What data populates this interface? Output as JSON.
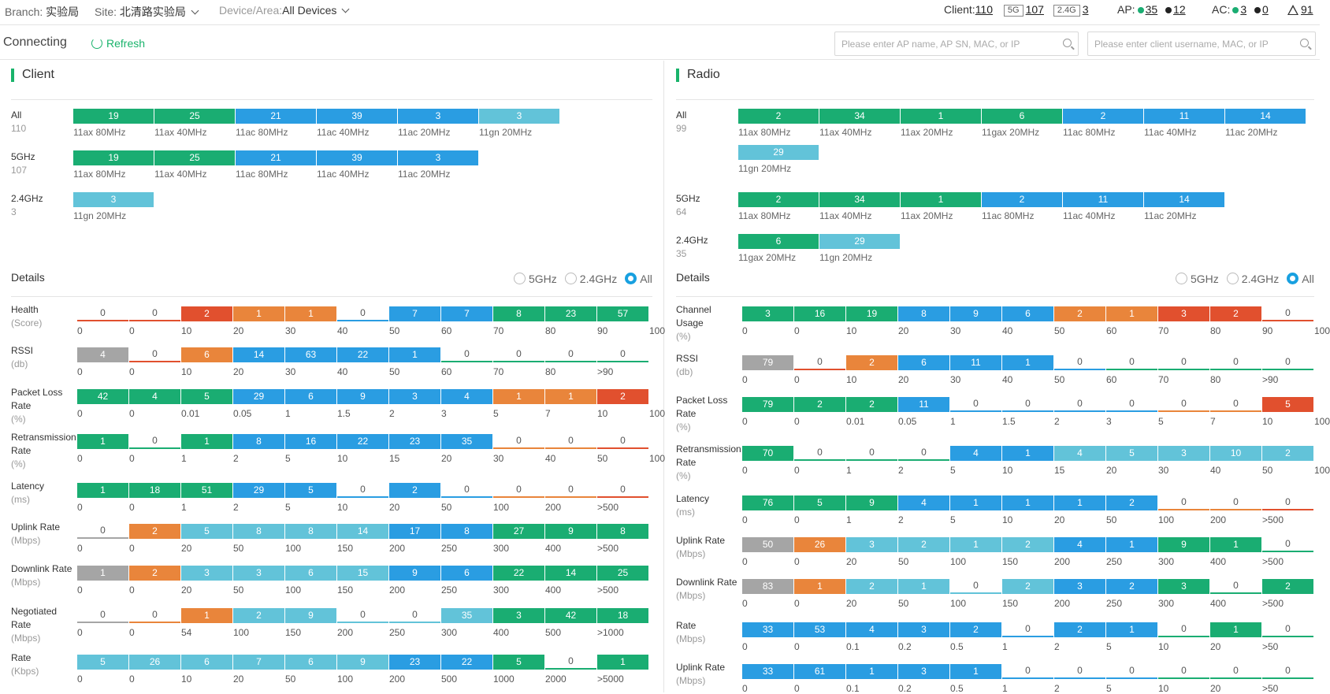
{
  "top": {
    "branch_label": "Branch:",
    "branch_value": "实验局",
    "site_label": "Site:",
    "site_value": "北清路实验局",
    "device_label": "Device/Area:",
    "device_value": "All Devices",
    "client_label": "Client:",
    "client_total": "110",
    "client_5g_tag": "5G",
    "client_5g": "107",
    "client_24g_tag": "2.4G",
    "client_24g": "3",
    "ap_label": "AP:",
    "ap_online": "35",
    "ap_offline": "12",
    "ac_label": "AC:",
    "ac_online": "3",
    "ac_offline": "0",
    "alarm_count": "91"
  },
  "toolbar": {
    "status": "Connecting",
    "refresh_label": "Refresh",
    "ap_search_placeholder": "Please enter AP name, AP SN, MAC, or IP",
    "client_search_placeholder": "Please enter client username, MAC, or IP"
  },
  "colors": {
    "green": "#1aad72",
    "blue": "#2a9de2",
    "light_blue": "#62c3d9",
    "orange": "#e9853b",
    "red": "#e1502e",
    "gray": "#a5a5a5",
    "accent": "#19b36b"
  },
  "client": {
    "title": "Client",
    "summary": [
      {
        "name": "All",
        "count": "110",
        "cells": [
          [
            "19",
            "11ax 80MHz",
            "green"
          ],
          [
            "25",
            "11ax 40MHz",
            "green"
          ],
          [
            "21",
            "11ac 80MHz",
            "blue"
          ],
          [
            "39",
            "11ac 40MHz",
            "blue"
          ],
          [
            "3",
            "11ac 20MHz",
            "blue"
          ],
          [
            "3",
            "11gn 20MHz",
            "light_blue"
          ]
        ]
      },
      {
        "name": "5GHz",
        "count": "107",
        "cells": [
          [
            "19",
            "11ax 80MHz",
            "green"
          ],
          [
            "25",
            "11ax 40MHz",
            "green"
          ],
          [
            "21",
            "11ac 80MHz",
            "blue"
          ],
          [
            "39",
            "11ac 40MHz",
            "blue"
          ],
          [
            "3",
            "11ac 20MHz",
            "blue"
          ]
        ]
      },
      {
        "name": "2.4GHz",
        "count": "3",
        "cells": [
          [
            "3",
            "11gn 20MHz",
            "light_blue"
          ]
        ]
      }
    ],
    "details_title": "Details",
    "filters": [
      "5GHz",
      "2.4GHz",
      "All"
    ],
    "metrics": [
      {
        "name": "Health",
        "unit": "(Score)",
        "vals": [
          "0",
          "0",
          "2",
          "1",
          "1",
          "0",
          "7",
          "7",
          "8",
          "23",
          "57"
        ],
        "cols": [
          "red",
          "red",
          "red",
          "orange",
          "orange",
          "blue",
          "blue",
          "blue",
          "green",
          "green",
          "green"
        ],
        "ticks": [
          "0",
          "0",
          "10",
          "20",
          "30",
          "40",
          "50",
          "60",
          "70",
          "80",
          "90",
          "100"
        ]
      },
      {
        "name": "RSSI",
        "unit": "(db)",
        "vals": [
          "4",
          "0",
          "6",
          "14",
          "63",
          "22",
          "1",
          "0",
          "0",
          "0",
          "0"
        ],
        "cols": [
          "gray",
          "red",
          "orange",
          "blue",
          "blue",
          "blue",
          "blue",
          "green",
          "green",
          "green",
          "green"
        ],
        "ticks": [
          "0",
          "0",
          "10",
          "20",
          "30",
          "40",
          "50",
          "60",
          "70",
          "80",
          ">90"
        ]
      },
      {
        "name": "Packet Loss",
        "name2": "Rate",
        "unit": "(%)",
        "vals": [
          "42",
          "4",
          "5",
          "29",
          "6",
          "9",
          "3",
          "4",
          "1",
          "1",
          "2"
        ],
        "cols": [
          "green",
          "green",
          "green",
          "blue",
          "blue",
          "blue",
          "blue",
          "blue",
          "orange",
          "orange",
          "red"
        ],
        "ticks": [
          "0",
          "0",
          "0.01",
          "0.05",
          "1",
          "1.5",
          "2",
          "3",
          "5",
          "7",
          "10",
          "100"
        ]
      },
      {
        "name": "Retransmission",
        "name2": "Rate",
        "unit": "(%)",
        "vals": [
          "1",
          "0",
          "1",
          "8",
          "16",
          "22",
          "23",
          "35",
          "0",
          "0",
          "0"
        ],
        "cols": [
          "green",
          "green",
          "green",
          "blue",
          "blue",
          "blue",
          "blue",
          "blue",
          "orange",
          "orange",
          "red"
        ],
        "ticks": [
          "0",
          "0",
          "1",
          "2",
          "5",
          "10",
          "15",
          "20",
          "30",
          "40",
          "50",
          "100"
        ]
      },
      {
        "name": "Latency",
        "unit": "(ms)",
        "vals": [
          "1",
          "18",
          "51",
          "29",
          "5",
          "0",
          "2",
          "0",
          "0",
          "0",
          "0"
        ],
        "cols": [
          "green",
          "green",
          "green",
          "blue",
          "blue",
          "blue",
          "blue",
          "blue",
          "orange",
          "orange",
          "red"
        ],
        "ticks": [
          "0",
          "0",
          "1",
          "2",
          "5",
          "10",
          "20",
          "50",
          "100",
          "200",
          ">500"
        ]
      },
      {
        "name": "Uplink Rate",
        "unit": "(Mbps)",
        "vals": [
          "0",
          "2",
          "5",
          "8",
          "8",
          "14",
          "17",
          "8",
          "27",
          "9",
          "8"
        ],
        "cols": [
          "gray",
          "orange",
          "light_blue",
          "light_blue",
          "light_blue",
          "light_blue",
          "blue",
          "blue",
          "green",
          "green",
          "green"
        ],
        "ticks": [
          "0",
          "0",
          "20",
          "50",
          "100",
          "150",
          "200",
          "250",
          "300",
          "400",
          ">500"
        ]
      },
      {
        "name": "Downlink Rate",
        "unit": "(Mbps)",
        "vals": [
          "1",
          "2",
          "3",
          "3",
          "6",
          "15",
          "9",
          "6",
          "22",
          "14",
          "25"
        ],
        "cols": [
          "gray",
          "orange",
          "light_blue",
          "light_blue",
          "light_blue",
          "light_blue",
          "blue",
          "blue",
          "green",
          "green",
          "green"
        ],
        "ticks": [
          "0",
          "0",
          "20",
          "50",
          "100",
          "150",
          "200",
          "250",
          "300",
          "400",
          ">500"
        ]
      },
      {
        "name": "Negotiated",
        "name2": "Rate",
        "unit": "(Mbps)",
        "vals": [
          "0",
          "0",
          "1",
          "2",
          "9",
          "0",
          "0",
          "35",
          "3",
          "42",
          "18"
        ],
        "cols": [
          "gray",
          "orange",
          "orange",
          "light_blue",
          "light_blue",
          "light_blue",
          "light_blue",
          "light_blue",
          "green",
          "green",
          "green"
        ],
        "ticks": [
          "0",
          "0",
          "54",
          "100",
          "150",
          "200",
          "250",
          "300",
          "400",
          "500",
          ">1000"
        ]
      },
      {
        "name": "Rate",
        "unit": "(Kbps)",
        "vals": [
          "5",
          "26",
          "6",
          "7",
          "6",
          "9",
          "23",
          "22",
          "5",
          "0",
          "1"
        ],
        "cols": [
          "light_blue",
          "light_blue",
          "light_blue",
          "light_blue",
          "light_blue",
          "light_blue",
          "blue",
          "blue",
          "green",
          "green",
          "green"
        ],
        "ticks": [
          "0",
          "0",
          "10",
          "20",
          "50",
          "100",
          "200",
          "500",
          "1000",
          "2000",
          ">5000"
        ]
      }
    ]
  },
  "radio": {
    "title": "Radio",
    "summary": [
      {
        "name": "All",
        "count": "99",
        "cells": [
          [
            "2",
            "11ax 80MHz",
            "green"
          ],
          [
            "34",
            "11ax 40MHz",
            "green"
          ],
          [
            "1",
            "11ax 20MHz",
            "green"
          ],
          [
            "6",
            "11gax 20MHz",
            "green"
          ],
          [
            "2",
            "11ac 80MHz",
            "blue"
          ],
          [
            "11",
            "11ac 40MHz",
            "blue"
          ],
          [
            "14",
            "11ac 20MHz",
            "blue"
          ],
          [
            "29",
            "11gn 20MHz",
            "light_blue"
          ]
        ]
      },
      {
        "name": "5GHz",
        "count": "64",
        "cells": [
          [
            "2",
            "11ax 80MHz",
            "green"
          ],
          [
            "34",
            "11ax 40MHz",
            "green"
          ],
          [
            "1",
            "11ax 20MHz",
            "green"
          ],
          [
            "2",
            "11ac 80MHz",
            "blue"
          ],
          [
            "11",
            "11ac 40MHz",
            "blue"
          ],
          [
            "14",
            "11ac 20MHz",
            "blue"
          ]
        ]
      },
      {
        "name": "2.4GHz",
        "count": "35",
        "cells": [
          [
            "6",
            "11gax 20MHz",
            "green"
          ],
          [
            "29",
            "11gn 20MHz",
            "light_blue"
          ]
        ]
      }
    ],
    "details_title": "Details",
    "filters": [
      "5GHz",
      "2.4GHz",
      "All"
    ],
    "metrics": [
      {
        "name": "Channel",
        "name2": "Usage",
        "unit": "(%)",
        "vals": [
          "3",
          "16",
          "19",
          "8",
          "9",
          "6",
          "2",
          "1",
          "3",
          "2",
          "0"
        ],
        "cols": [
          "green",
          "green",
          "green",
          "blue",
          "blue",
          "blue",
          "orange",
          "orange",
          "red",
          "red",
          "red"
        ],
        "ticks": [
          "0",
          "0",
          "10",
          "20",
          "30",
          "40",
          "50",
          "60",
          "70",
          "80",
          "90",
          "100"
        ]
      },
      {
        "name": "RSSI",
        "unit": "(db)",
        "vals": [
          "79",
          "0",
          "2",
          "6",
          "11",
          "1",
          "0",
          "0",
          "0",
          "0",
          "0"
        ],
        "cols": [
          "gray",
          "red",
          "orange",
          "blue",
          "blue",
          "blue",
          "blue",
          "green",
          "green",
          "green",
          "green"
        ],
        "ticks": [
          "0",
          "0",
          "10",
          "20",
          "30",
          "40",
          "50",
          "60",
          "70",
          "80",
          ">90"
        ]
      },
      {
        "name": "Packet Loss",
        "name2": "Rate",
        "unit": "(%)",
        "vals": [
          "79",
          "2",
          "2",
          "11",
          "0",
          "0",
          "0",
          "0",
          "0",
          "0",
          "5"
        ],
        "cols": [
          "green",
          "green",
          "green",
          "blue",
          "blue",
          "blue",
          "blue",
          "blue",
          "orange",
          "orange",
          "red"
        ],
        "ticks": [
          "0",
          "0",
          "0.01",
          "0.05",
          "1",
          "1.5",
          "2",
          "3",
          "5",
          "7",
          "10",
          "100"
        ]
      },
      {
        "name": "Retransmission",
        "name2": "Rate",
        "unit": "(%)",
        "vals": [
          "70",
          "0",
          "0",
          "0",
          "4",
          "1",
          "4",
          "5",
          "3",
          "10",
          "2"
        ],
        "cols": [
          "green",
          "green",
          "green",
          "green",
          "blue",
          "blue",
          "light_blue",
          "light_blue",
          "light_blue",
          "light_blue",
          "light_blue"
        ],
        "ticks": [
          "0",
          "0",
          "1",
          "2",
          "5",
          "10",
          "15",
          "20",
          "30",
          "40",
          "50",
          "100"
        ]
      },
      {
        "name": "Latency",
        "unit": "(ms)",
        "vals": [
          "76",
          "5",
          "9",
          "4",
          "1",
          "1",
          "1",
          "2",
          "0",
          "0",
          "0"
        ],
        "cols": [
          "green",
          "green",
          "green",
          "blue",
          "blue",
          "blue",
          "blue",
          "blue",
          "orange",
          "orange",
          "red"
        ],
        "ticks": [
          "0",
          "0",
          "1",
          "2",
          "5",
          "10",
          "20",
          "50",
          "100",
          "200",
          ">500"
        ]
      },
      {
        "name": "Uplink Rate",
        "unit": "(Mbps)",
        "vals": [
          "50",
          "26",
          "3",
          "2",
          "1",
          "2",
          "4",
          "1",
          "9",
          "1",
          "0"
        ],
        "cols": [
          "gray",
          "orange",
          "light_blue",
          "light_blue",
          "light_blue",
          "light_blue",
          "blue",
          "blue",
          "green",
          "green",
          "green"
        ],
        "ticks": [
          "0",
          "0",
          "20",
          "50",
          "100",
          "150",
          "200",
          "250",
          "300",
          "400",
          ">500"
        ]
      },
      {
        "name": "Downlink Rate",
        "unit": "(Mbps)",
        "vals": [
          "83",
          "1",
          "2",
          "1",
          "0",
          "2",
          "3",
          "2",
          "3",
          "0",
          "2"
        ],
        "cols": [
          "gray",
          "orange",
          "light_blue",
          "light_blue",
          "light_blue",
          "light_blue",
          "blue",
          "blue",
          "green",
          "green",
          "green"
        ],
        "ticks": [
          "0",
          "0",
          "20",
          "50",
          "100",
          "150",
          "200",
          "250",
          "300",
          "400",
          ">500"
        ]
      },
      {
        "name": "Rate",
        "unit": "(Mbps)",
        "vals": [
          "33",
          "53",
          "4",
          "3",
          "2",
          "0",
          "2",
          "1",
          "0",
          "1",
          "0"
        ],
        "cols": [
          "blue",
          "blue",
          "blue",
          "blue",
          "blue",
          "blue",
          "blue",
          "blue",
          "green",
          "green",
          "green"
        ],
        "ticks": [
          "0",
          "0",
          "0.1",
          "0.2",
          "0.5",
          "1",
          "2",
          "5",
          "10",
          "20",
          ">50"
        ]
      },
      {
        "name": "Uplink Rate",
        "unit": "(Mbps)",
        "vals": [
          "33",
          "61",
          "1",
          "3",
          "1",
          "0",
          "0",
          "0",
          "0",
          "0",
          "0"
        ],
        "cols": [
          "blue",
          "blue",
          "blue",
          "blue",
          "blue",
          "blue",
          "blue",
          "blue",
          "green",
          "green",
          "green"
        ],
        "ticks": [
          "0",
          "0",
          "0.1",
          "0.2",
          "0.5",
          "1",
          "2",
          "5",
          "10",
          "20",
          ">50"
        ]
      }
    ]
  }
}
